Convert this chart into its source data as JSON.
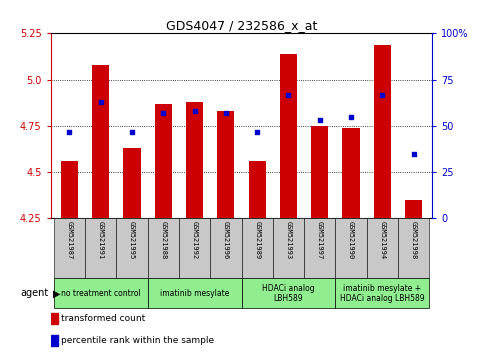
{
  "title": "GDS4047 / 232586_x_at",
  "samples": [
    "GSM521987",
    "GSM521991",
    "GSM521995",
    "GSM521988",
    "GSM521992",
    "GSM521996",
    "GSM521989",
    "GSM521993",
    "GSM521997",
    "GSM521990",
    "GSM521994",
    "GSM521998"
  ],
  "bar_values": [
    4.56,
    5.08,
    4.63,
    4.87,
    4.88,
    4.83,
    4.56,
    5.14,
    4.75,
    4.74,
    5.19,
    4.35
  ],
  "percentile_values": [
    47,
    63,
    47,
    57,
    58,
    57,
    47,
    67,
    53,
    55,
    67,
    35
  ],
  "y_min": 4.25,
  "y_max": 5.25,
  "y_ticks": [
    4.25,
    4.5,
    4.75,
    5.0,
    5.25
  ],
  "right_y_ticks": [
    0,
    25,
    50,
    75,
    100
  ],
  "right_y_labels": [
    "0",
    "25",
    "50",
    "75",
    "100%"
  ],
  "bar_color": "#CC0000",
  "dot_color": "#0000CC",
  "grid_color": "#000000",
  "group_boundaries": [
    {
      "start": 0,
      "end": 3,
      "label": "no treatment control"
    },
    {
      "start": 3,
      "end": 6,
      "label": "imatinib mesylate"
    },
    {
      "start": 6,
      "end": 9,
      "label": "HDACi analog\nLBH589"
    },
    {
      "start": 9,
      "end": 12,
      "label": "imatinib mesylate +\nHDACi analog LBH589"
    }
  ],
  "group_color": "#90EE90",
  "sample_bg_color": "#C8C8C8",
  "legend_items": [
    {
      "color": "#CC0000",
      "label": "transformed count"
    },
    {
      "color": "#0000CC",
      "label": "percentile rank within the sample"
    }
  ],
  "agent_label": "agent",
  "bar_width": 0.55
}
